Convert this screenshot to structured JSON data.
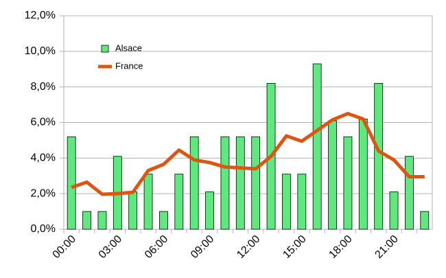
{
  "chart_data": {
    "type": "bar",
    "categories": [
      "00:00",
      null,
      null,
      "03:00",
      null,
      null,
      "06:00",
      null,
      null,
      "09:00",
      null,
      null,
      "12:00",
      null,
      null,
      "15:00",
      null,
      null,
      "18:00",
      null,
      null,
      "21:00",
      null,
      null
    ],
    "series": [
      {
        "name": "Alsace",
        "type": "bar",
        "color": "#5ee87e",
        "values": [
          5.2,
          1.0,
          1.0,
          4.1,
          2.1,
          3.1,
          1.0,
          3.1,
          5.2,
          2.1,
          5.2,
          5.2,
          5.2,
          8.2,
          3.1,
          3.1,
          9.3,
          6.1,
          5.2,
          6.2,
          8.2,
          2.1,
          4.1,
          1.0
        ]
      },
      {
        "name": "France",
        "type": "line",
        "color": "#dd5511",
        "values": [
          2.35,
          2.65,
          1.97,
          2.0,
          2.08,
          3.3,
          3.65,
          4.45,
          3.9,
          3.75,
          3.5,
          3.45,
          3.4,
          4.1,
          5.25,
          4.95,
          5.55,
          6.15,
          6.5,
          6.2,
          4.4,
          3.9,
          2.95,
          2.95
        ]
      }
    ],
    "ylim": [
      0,
      12
    ],
    "yticks": [
      {
        "value": 0,
        "label": "0,0%"
      },
      {
        "value": 2,
        "label": "2,0%"
      },
      {
        "value": 4,
        "label": "4,0%"
      },
      {
        "value": 6,
        "label": "6,0%"
      },
      {
        "value": 8,
        "label": "8,0%"
      },
      {
        "value": 10,
        "label": "10,0%"
      },
      {
        "value": 12,
        "label": "12,0%"
      }
    ],
    "grid": true,
    "legend": "upper left"
  }
}
